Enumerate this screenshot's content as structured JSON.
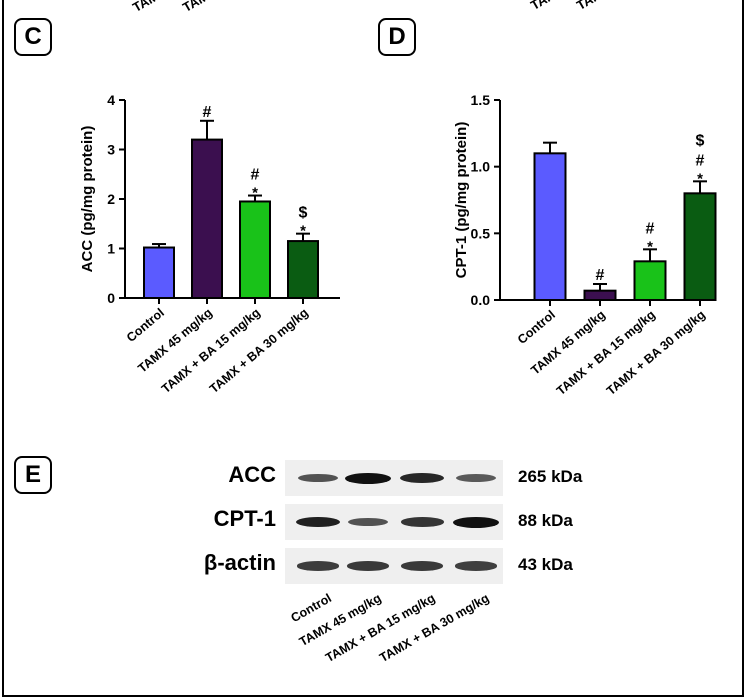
{
  "top_fragments": [
    "TAMX",
    "TAMX",
    "TAM",
    "TAM"
  ],
  "panels": {
    "C": {
      "label": "C"
    },
    "D": {
      "label": "D"
    },
    "E": {
      "label": "E"
    }
  },
  "colors": {
    "control": "#5b5bff",
    "tamx45": "#3b0f4f",
    "ba15": "#19c219",
    "ba30": "#0a5c12"
  },
  "chart_data": [
    {
      "type": "bar",
      "panel": "C",
      "categories": [
        "Control",
        "TAMX 45 mg/kg",
        "TAMX + BA 15 mg/kg",
        "TAMX + BA 30 mg/kg"
      ],
      "values": [
        1.02,
        3.2,
        1.95,
        1.15
      ],
      "errors": [
        0.07,
        0.38,
        0.12,
        0.15
      ],
      "significance": [
        [],
        [
          "#"
        ],
        [
          "#",
          "*"
        ],
        [
          "$",
          "*"
        ]
      ],
      "ylabel": "ACC (pg/mg protein)",
      "ylim": [
        0,
        4
      ],
      "yticks": [
        "0",
        "1",
        "2",
        "3",
        "4"
      ],
      "grid": false
    },
    {
      "type": "bar",
      "panel": "D",
      "categories": [
        "Control",
        "TAMX 45 mg/kg",
        "TAMX + BA 15 mg/kg",
        "TAMX + BA 30 mg/kg"
      ],
      "values": [
        1.1,
        0.07,
        0.29,
        0.8
      ],
      "errors": [
        0.08,
        0.05,
        0.09,
        0.09
      ],
      "significance": [
        [],
        [
          "#"
        ],
        [
          "#",
          "*"
        ],
        [
          "$",
          "#",
          "*"
        ]
      ],
      "ylabel": "CPT-1 (pg/mg protein)",
      "ylim": [
        0,
        1.5
      ],
      "yticks": [
        "0.0",
        "0.5",
        "1.0",
        "1.5"
      ],
      "grid": false
    }
  ],
  "blot": {
    "rows": [
      {
        "protein": "ACC",
        "size": "265 kDa",
        "intensity": [
          0.55,
          1.0,
          0.85,
          0.5
        ]
      },
      {
        "protein": "CPT-1",
        "size": "88 kDa",
        "intensity": [
          0.9,
          0.55,
          0.75,
          1.0
        ]
      },
      {
        "protein": "β-actin",
        "size": "43 kDa",
        "intensity": [
          0.7,
          0.72,
          0.72,
          0.68
        ]
      }
    ],
    "lanes": [
      "Control",
      "TAMX 45 mg/kg",
      "TAMX + BA 15 mg/kg",
      "TAMX + BA 30 mg/kg"
    ]
  }
}
